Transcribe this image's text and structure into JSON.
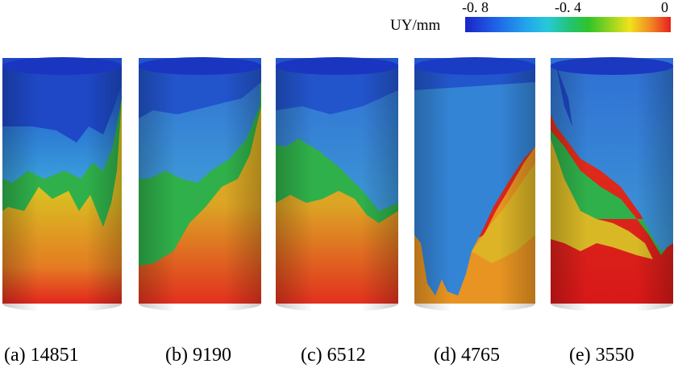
{
  "legend": {
    "title": "UY/mm",
    "ticks": [
      "-0. 8",
      "-0. 4",
      "0"
    ]
  },
  "captions": [
    "(a) 14851",
    "(b) 9190",
    "(c) 6512",
    "(d) 4765",
    "(e) 3550"
  ]
}
